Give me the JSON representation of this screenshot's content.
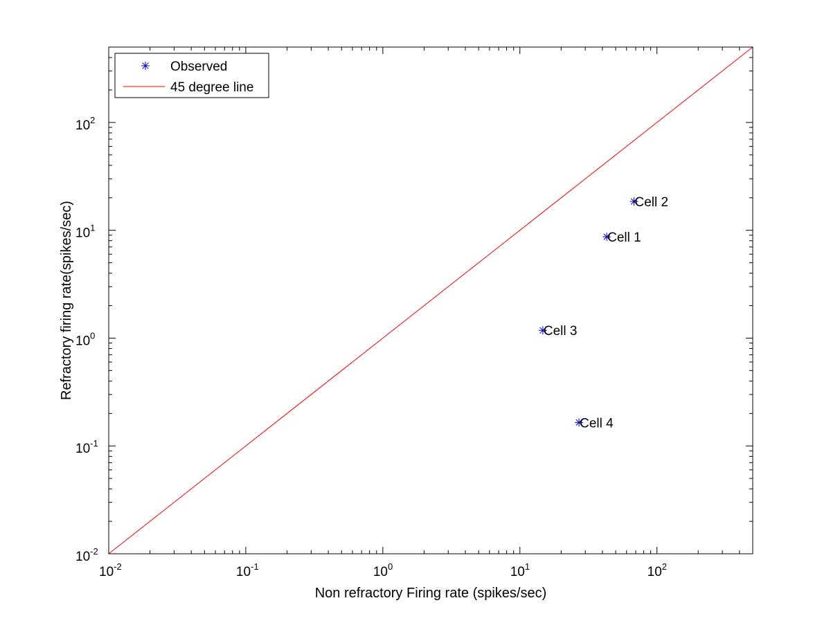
{
  "chart_data": {
    "type": "scatter",
    "title": "",
    "xlabel": "Non refractory Firing rate (spikes/sec)",
    "ylabel": "Refractory firing rate(spikes/sec)",
    "xscale": "log",
    "yscale": "log",
    "xlim": [
      0.01,
      500
    ],
    "ylim": [
      0.01,
      500
    ],
    "grid": false,
    "x_ticks": [
      {
        "base": "10",
        "exp": "-2",
        "value": 0.01
      },
      {
        "base": "10",
        "exp": "-1",
        "value": 0.1
      },
      {
        "base": "10",
        "exp": "0",
        "value": 1
      },
      {
        "base": "10",
        "exp": "1",
        "value": 10
      },
      {
        "base": "10",
        "exp": "2",
        "value": 100
      }
    ],
    "y_ticks": [
      {
        "base": "10",
        "exp": "-2",
        "value": 0.01
      },
      {
        "base": "10",
        "exp": "-1",
        "value": 0.1
      },
      {
        "base": "10",
        "exp": "0",
        "value": 1
      },
      {
        "base": "10",
        "exp": "1",
        "value": 10
      },
      {
        "base": "10",
        "exp": "2",
        "value": 100
      }
    ],
    "legend": {
      "placement": "top-left",
      "entries": [
        {
          "label": "Observed",
          "marker": "asterisk",
          "color": "#0000cc"
        },
        {
          "label": "45 degree line",
          "marker": "line",
          "color": "#ff0000"
        }
      ]
    },
    "series": [
      {
        "name": "Observed",
        "kind": "scatter",
        "marker": "asterisk",
        "color": "#0000cc",
        "points": [
          {
            "x": 43,
            "y": 8.7,
            "label": "Cell 1"
          },
          {
            "x": 68,
            "y": 18.5,
            "label": "Cell 2"
          },
          {
            "x": 14.7,
            "y": 1.18,
            "label": "Cell 3"
          },
          {
            "x": 27,
            "y": 0.165,
            "label": "Cell 4"
          }
        ]
      },
      {
        "name": "45 degree line",
        "kind": "line",
        "color": "#ff0000",
        "points": [
          {
            "x": 0.01,
            "y": 0.01
          },
          {
            "x": 500,
            "y": 500
          }
        ]
      }
    ]
  }
}
